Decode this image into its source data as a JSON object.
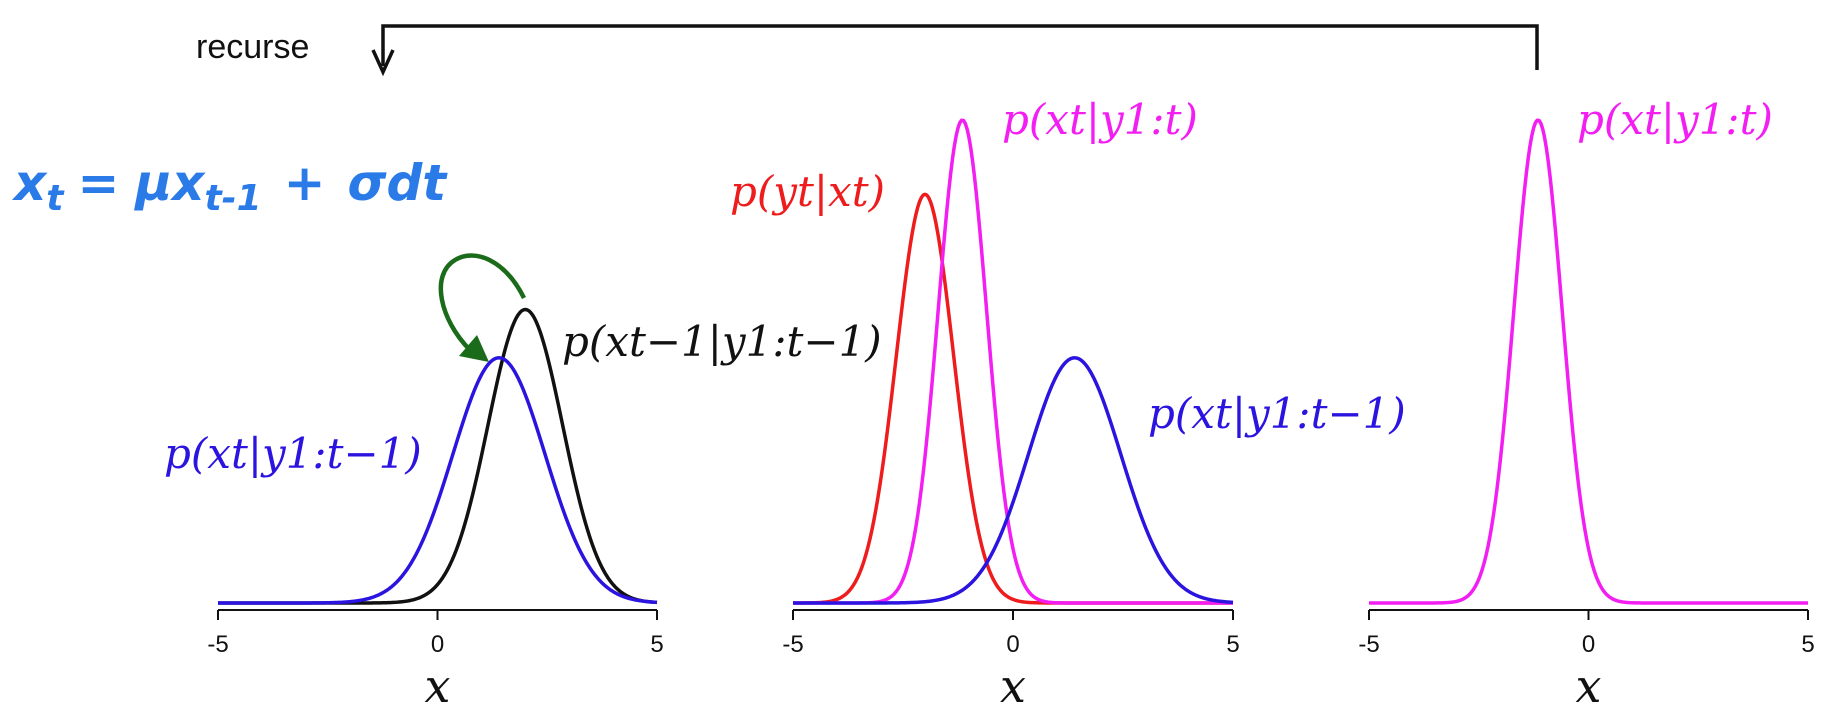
{
  "recurse_label": "recurse",
  "handwritten_equation": "xt = μxt-1 + σdt",
  "xlabel": "x",
  "colors": {
    "black": "#111111",
    "blue": "#2b14e0",
    "red": "#ee1c1c",
    "magenta": "#f21ef2",
    "green": "#1a6b1a",
    "hand": "#2a7ae8"
  },
  "chart_data": [
    {
      "type": "line",
      "title": "",
      "xlabel": "x",
      "ylabel": "",
      "xlim": [
        -5,
        5
      ],
      "xticks": [
        "-5",
        "0",
        "5"
      ],
      "series": [
        {
          "name": "p(x_{t-1}|y_{1:t-1})",
          "label": "p(xt−1|y1:t−1)",
          "color": "black",
          "mu": 2.0,
          "sigma": 0.85,
          "peak": 0.79
        },
        {
          "name": "p(x_t|y_{1:t-1})",
          "label": "p(xt|y1:t−1)",
          "color": "blue",
          "mu": 1.4,
          "sigma": 1.05,
          "peak": 0.66
        }
      ],
      "annotation": "predict step (curved arrow from black peak to blue peak)"
    },
    {
      "type": "line",
      "title": "",
      "xlabel": "x",
      "ylabel": "",
      "xlim": [
        -5,
        5
      ],
      "xticks": [
        "-5",
        "0",
        "5"
      ],
      "series": [
        {
          "name": "p(y_t|x_t)",
          "label": "p(yt|xt)",
          "color": "red",
          "mu": -2.0,
          "sigma": 0.65,
          "peak": 1.1
        },
        {
          "name": "p(x_t|y_{1:t})",
          "label": "p(xt|y1:t)",
          "color": "magenta",
          "mu": -1.15,
          "sigma": 0.55,
          "peak": 1.3
        },
        {
          "name": "p(x_t|y_{1:t-1})",
          "label": "p(xt|y1:t−1)",
          "color": "blue",
          "mu": 1.4,
          "sigma": 1.05,
          "peak": 0.66
        }
      ]
    },
    {
      "type": "line",
      "title": "",
      "xlabel": "x",
      "ylabel": "",
      "xlim": [
        -5,
        5
      ],
      "xticks": [
        "-5",
        "0",
        "5"
      ],
      "series": [
        {
          "name": "p(x_t|y_{1:t})",
          "label": "p(xt|y1:t)",
          "color": "magenta",
          "mu": -1.15,
          "sigma": 0.55,
          "peak": 1.3
        }
      ]
    }
  ]
}
